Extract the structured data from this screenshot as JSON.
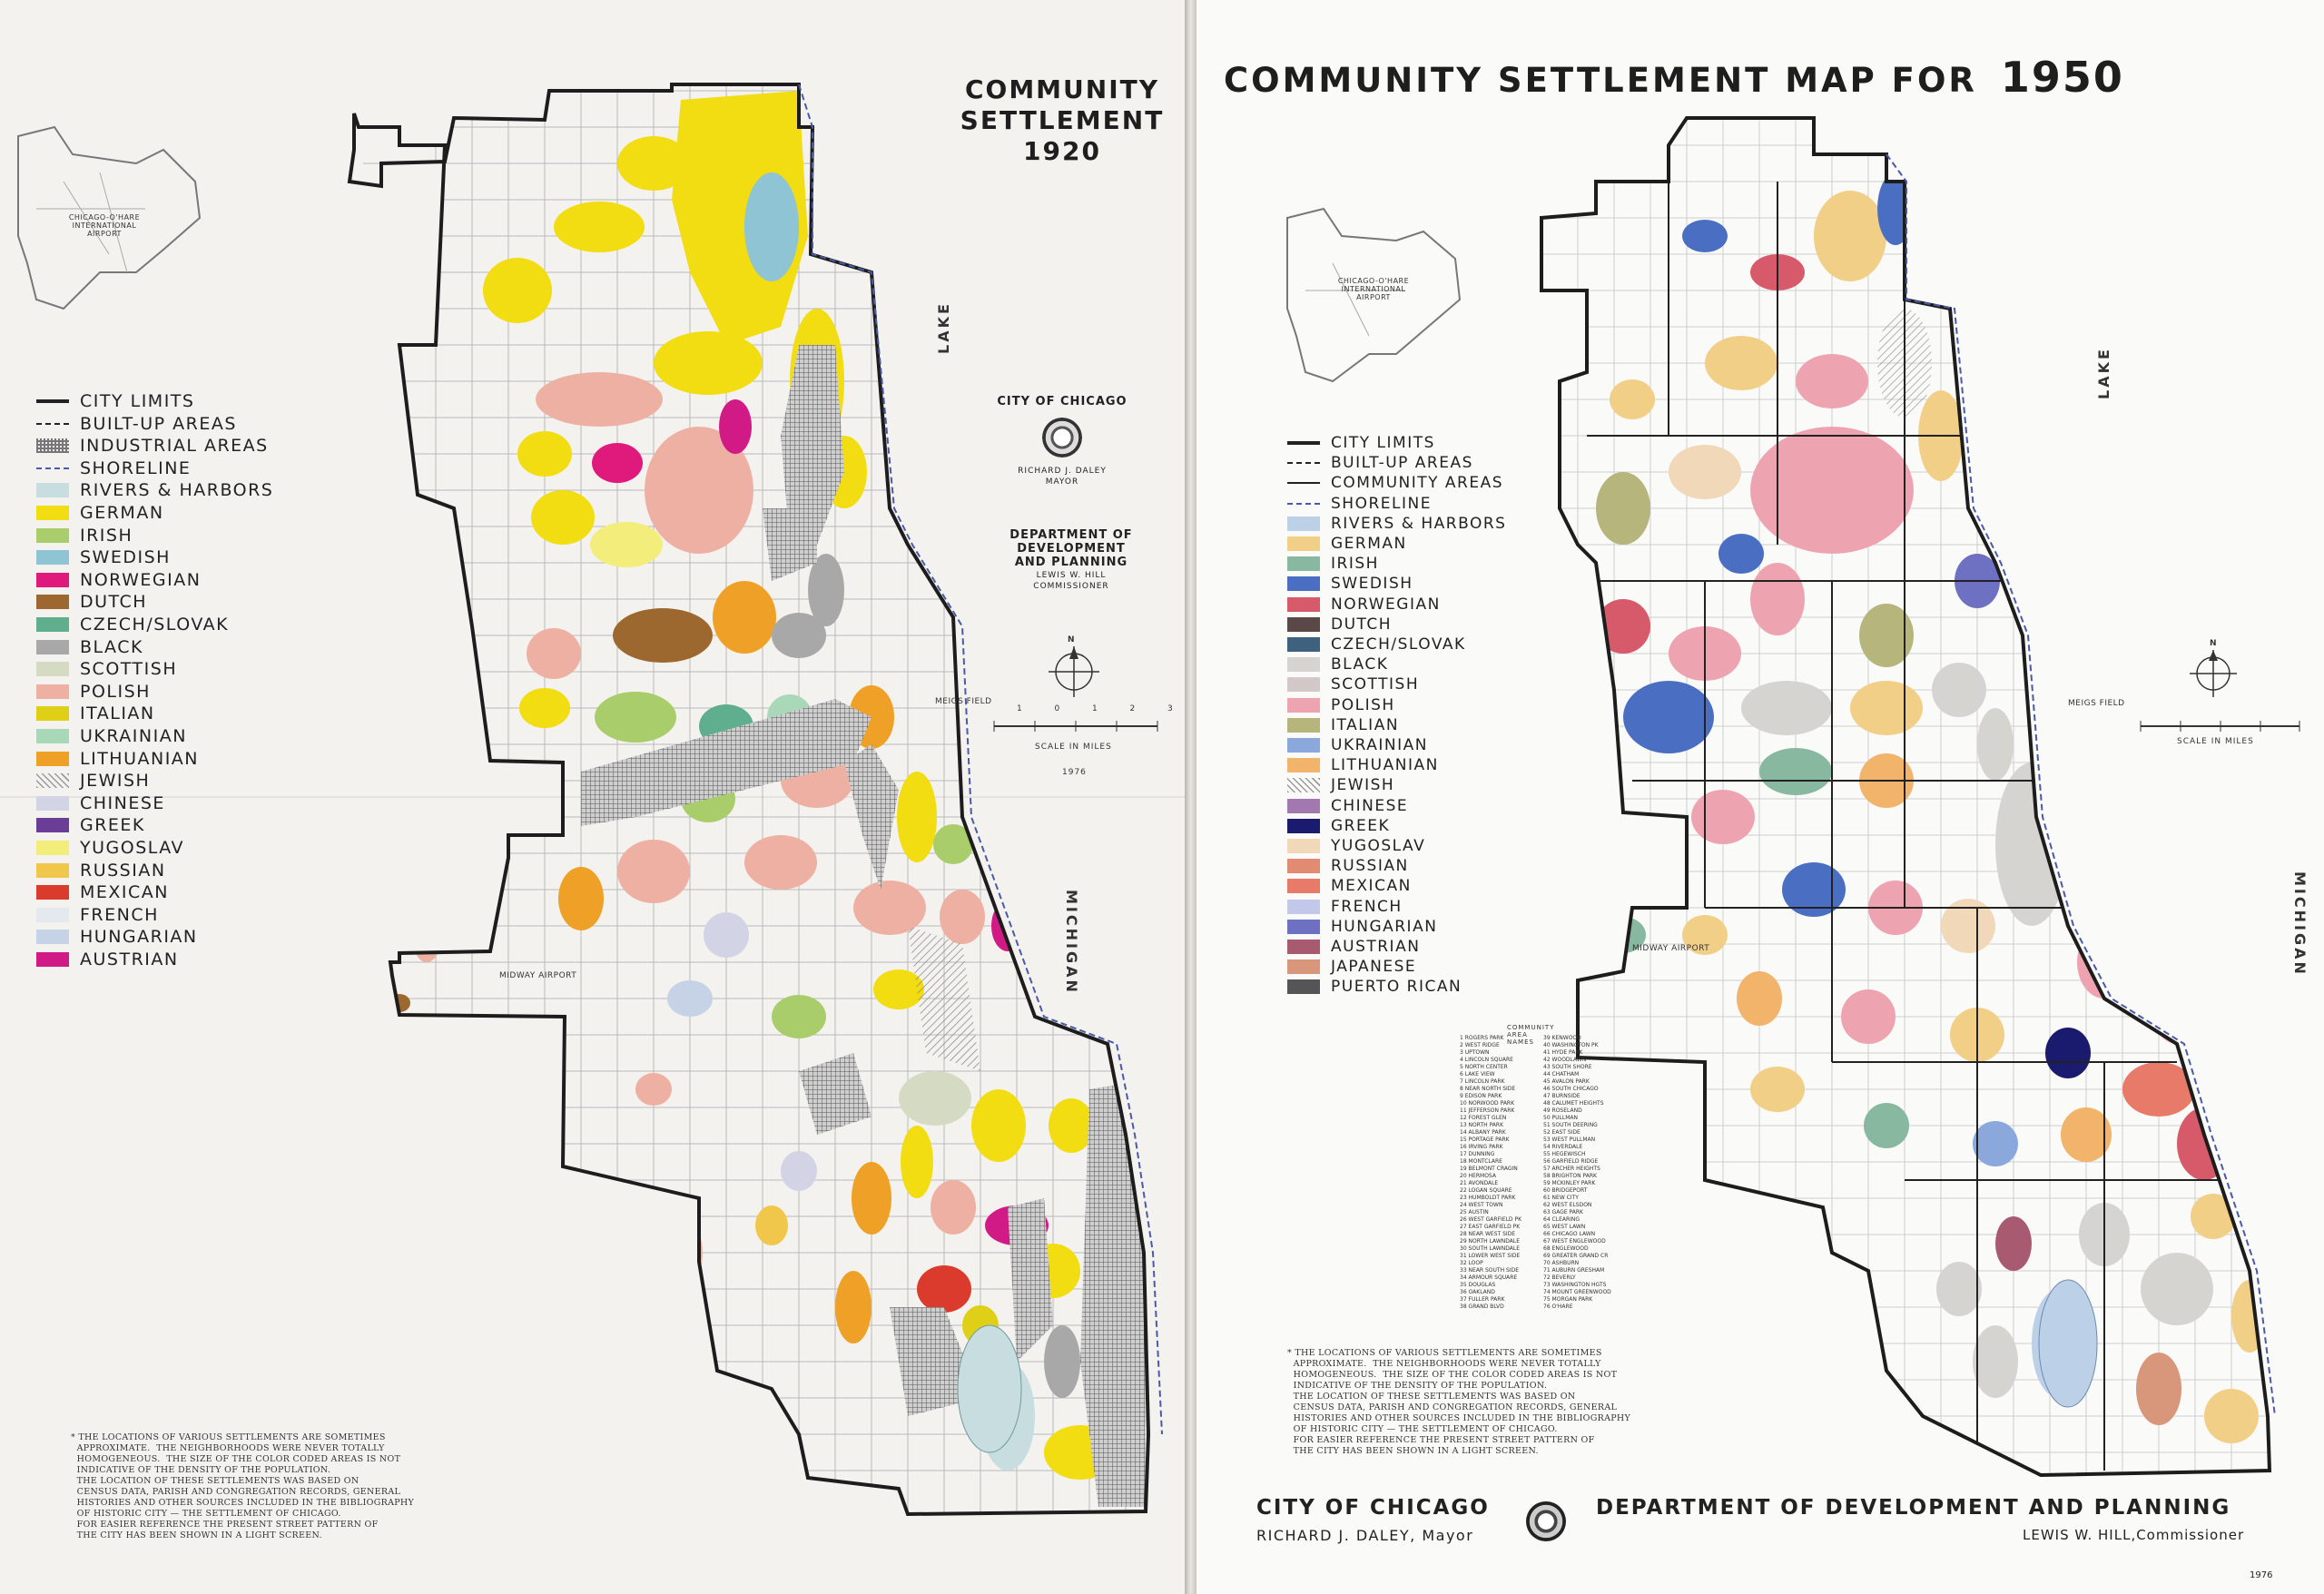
{
  "left_map": {
    "title_lines": [
      "COMMUNITY",
      "SETTLEMENT",
      "1920"
    ],
    "city_header": "CITY OF CHICAGO",
    "mayor_name": "RICHARD J. DALEY",
    "mayor_title": "MAYOR",
    "department_lines": [
      "DEPARTMENT OF DEVELOPMENT",
      "AND PLANNING"
    ],
    "commissioner_name": "LEWIS W. HILL",
    "commissioner_title": "COMMISSIONER",
    "scale_label": "SCALE IN MILES",
    "scale_ticks": [
      "1",
      "0",
      "1",
      "2",
      "3"
    ],
    "year": "1976",
    "compass": "N",
    "water_labels": [
      "LAKE",
      "MICHIGAN"
    ],
    "airport_labels": [
      "CHICAGO-O'HARE INTERNATIONAL AIRPORT",
      "MIDWAY AIRPORT",
      "MEIGS FIELD"
    ],
    "legend": [
      {
        "label": "CITY LIMITS",
        "kind": "line-thick",
        "color": "#222222"
      },
      {
        "label": "BUILT-UP AREAS",
        "kind": "line-dashed",
        "color": "#222222"
      },
      {
        "label": "INDUSTRIAL AREAS",
        "kind": "hatch-grid",
        "color": "#777777"
      },
      {
        "label": "SHORELINE",
        "kind": "line-dashed",
        "color": "#4a5aa8"
      },
      {
        "label": "RIVERS & HARBORS",
        "kind": "fill",
        "color": "#c7dde0"
      },
      {
        "label": "GERMAN",
        "kind": "fill",
        "color": "#f2dc12"
      },
      {
        "label": "IRISH",
        "kind": "fill",
        "color": "#a8cd6a"
      },
      {
        "label": "SWEDISH",
        "kind": "fill",
        "color": "#8ec4d3"
      },
      {
        "label": "NORWEGIAN",
        "kind": "fill",
        "color": "#e0197d"
      },
      {
        "label": "DUTCH",
        "kind": "fill",
        "color": "#9d6730"
      },
      {
        "label": "CZECH/SLOVAK",
        "kind": "fill",
        "color": "#5fae8e"
      },
      {
        "label": "BLACK",
        "kind": "fill",
        "color": "#a8a8a8"
      },
      {
        "label": "SCOTTISH",
        "kind": "fill",
        "color": "#d4dbc2"
      },
      {
        "label": "POLISH",
        "kind": "fill",
        "color": "#efb0a4"
      },
      {
        "label": "ITALIAN",
        "kind": "fill",
        "color": "#e0cf17"
      },
      {
        "label": "UKRAINIAN",
        "kind": "fill",
        "color": "#a8d8b8"
      },
      {
        "label": "LITHUANIAN",
        "kind": "fill",
        "color": "#eea126"
      },
      {
        "label": "JEWISH",
        "kind": "hatch",
        "color": "#9a9a9a"
      },
      {
        "label": "CHINESE",
        "kind": "fill",
        "color": "#d3d3e6"
      },
      {
        "label": "GREEK",
        "kind": "fill",
        "color": "#6a3e96"
      },
      {
        "label": "YUGOSLAV",
        "kind": "fill",
        "color": "#f3ed7c"
      },
      {
        "label": "RUSSIAN",
        "kind": "fill",
        "color": "#f0c74b"
      },
      {
        "label": "MEXICAN",
        "kind": "fill",
        "color": "#db3b2c"
      },
      {
        "label": "FRENCH",
        "kind": "fill",
        "color": "#e3e9ee"
      },
      {
        "label": "HUNGARIAN",
        "kind": "fill",
        "color": "#c6d3e6"
      },
      {
        "label": "AUSTRIAN",
        "kind": "fill",
        "color": "#d11a86"
      }
    ],
    "footnote": "* THE LOCATIONS OF VARIOUS SETTLEMENTS ARE SOMETIMES\n  APPROXIMATE.  THE NEIGHBORHOODS WERE NEVER TOTALLY\n  HOMOGENEOUS.  THE SIZE OF THE COLOR CODED AREAS IS NOT\n  INDICATIVE OF THE DENSITY OF THE POPULATION.\n  THE LOCATION OF THESE SETTLEMENTS WAS BASED ON\n  CENSUS DATA, PARISH AND CONGREGATION RECORDS, GENERAL\n  HISTORIES AND OTHER SOURCES INCLUDED IN THE BIBLIOGRAPHY\n  OF HISTORIC CITY — THE SETTLEMENT OF CHICAGO.\n  FOR EASIER REFERENCE THE PRESENT STREET PATTERN OF\n  THE CITY HAS BEEN SHOWN IN A LIGHT SCREEN."
  },
  "right_map": {
    "title": "COMMUNITY SETTLEMENT MAP FOR",
    "title_year": "1950",
    "legend": [
      {
        "label": "CITY LIMITS",
        "kind": "line-thick",
        "color": "#222222"
      },
      {
        "label": "BUILT-UP AREAS",
        "kind": "line-dashed",
        "color": "#222222"
      },
      {
        "label": "COMMUNITY AREAS",
        "kind": "line",
        "color": "#222222"
      },
      {
        "label": "SHORELINE",
        "kind": "line-dashed",
        "color": "#4a5aa8"
      },
      {
        "label": "RIVERS & HARBORS",
        "kind": "fill",
        "color": "#bcd0e8"
      },
      {
        "label": "GERMAN",
        "kind": "fill",
        "color": "#f2cf86"
      },
      {
        "label": "IRISH",
        "kind": "fill",
        "color": "#88b8a0"
      },
      {
        "label": "SWEDISH",
        "kind": "fill",
        "color": "#4a6fc2"
      },
      {
        "label": "NORWEGIAN",
        "kind": "fill",
        "color": "#d65a6a"
      },
      {
        "label": "DUTCH",
        "kind": "fill",
        "color": "#5a4848"
      },
      {
        "label": "CZECH/SLOVAK",
        "kind": "fill",
        "color": "#3f6180"
      },
      {
        "label": "BLACK",
        "kind": "fill",
        "color": "#d6d4d1"
      },
      {
        "label": "SCOTTISH",
        "kind": "fill",
        "color": "#d2c8c8"
      },
      {
        "label": "POLISH",
        "kind": "fill",
        "color": "#eea3b0"
      },
      {
        "label": "ITALIAN",
        "kind": "fill",
        "color": "#b5b57c"
      },
      {
        "label": "UKRAINIAN",
        "kind": "fill",
        "color": "#8aa8dc"
      },
      {
        "label": "LITHUANIAN",
        "kind": "fill",
        "color": "#f2b36a"
      },
      {
        "label": "JEWISH",
        "kind": "hatch",
        "color": "#9a9a9a"
      },
      {
        "label": "CHINESE",
        "kind": "fill",
        "color": "#a178b0"
      },
      {
        "label": "GREEK",
        "kind": "fill",
        "color": "#1a1a6e"
      },
      {
        "label": "YUGOSLAV",
        "kind": "fill",
        "color": "#f0d8b8"
      },
      {
        "label": "RUSSIAN",
        "kind": "fill",
        "color": "#e28a72"
      },
      {
        "label": "MEXICAN",
        "kind": "fill",
        "color": "#e87a6a"
      },
      {
        "label": "FRENCH",
        "kind": "fill",
        "color": "#c2c8ea"
      },
      {
        "label": "HUNGARIAN",
        "kind": "fill",
        "color": "#6e70c2"
      },
      {
        "label": "AUSTRIAN",
        "kind": "fill",
        "color": "#a85a70"
      },
      {
        "label": "JAPANESE",
        "kind": "fill",
        "color": "#d8967a"
      },
      {
        "label": "PUERTO RICAN",
        "kind": "fill",
        "color": "#555558"
      }
    ],
    "community_names_header": "COMMUNITY AREA NAMES",
    "community_names": [
      "1 ROGERS PARK",
      "2 WEST RIDGE",
      "3 UPTOWN",
      "4 LINCOLN SQUARE",
      "5 NORTH CENTER",
      "6 LAKE VIEW",
      "7 LINCOLN PARK",
      "8 NEAR NORTH SIDE",
      "9 EDISON PARK",
      "10 NORWOOD PARK",
      "11 JEFFERSON PARK",
      "12 FOREST GLEN",
      "13 NORTH PARK",
      "14 ALBANY PARK",
      "15 PORTAGE PARK",
      "16 IRVING PARK",
      "17 DUNNING",
      "18 MONTCLARE",
      "19 BELMONT CRAGIN",
      "20 HERMOSA",
      "21 AVONDALE",
      "22 LOGAN SQUARE",
      "23 HUMBOLDT PARK",
      "24 WEST TOWN",
      "25 AUSTIN",
      "26 WEST GARFIELD PK",
      "27 EAST GARFIELD PK",
      "28 NEAR WEST SIDE",
      "29 NORTH LAWNDALE",
      "30 SOUTH LAWNDALE",
      "31 LOWER WEST SIDE",
      "32 LOOP",
      "33 NEAR SOUTH SIDE",
      "34 ARMOUR SQUARE",
      "35 DOUGLAS",
      "36 OAKLAND",
      "37 FULLER PARK",
      "38 GRAND BLVD",
      "39 KENWOOD",
      "40 WASHINGTON PK",
      "41 HYDE PARK",
      "42 WOODLAWN",
      "43 SOUTH SHORE",
      "44 CHATHAM",
      "45 AVALON PARK",
      "46 SOUTH CHICAGO",
      "47 BURNSIDE",
      "48 CALUMET HEIGHTS",
      "49 ROSELAND",
      "50 PULLMAN",
      "51 SOUTH DEERING",
      "52 EAST SIDE",
      "53 WEST PULLMAN",
      "54 RIVERDALE",
      "55 HEGEWISCH",
      "56 GARFIELD RIDGE",
      "57 ARCHER HEIGHTS",
      "58 BRIGHTON PARK",
      "59 MCKINLEY PARK",
      "60 BRIDGEPORT",
      "61 NEW CITY",
      "62 WEST ELSDON",
      "63 GAGE PARK",
      "64 CLEARING",
      "65 WEST LAWN",
      "66 CHICAGO LAWN",
      "67 WEST ENGLEWOOD",
      "68 ENGLEWOOD",
      "69 GREATER GRAND CR",
      "70 ASHBURN",
      "71 AUBURN GRESHAM",
      "72 BEVERLY",
      "73 WASHINGTON HGTS",
      "74 MOUNT GREENWOOD",
      "75 MORGAN PARK",
      "76 O'HARE"
    ],
    "footnote": "* THE LOCATIONS OF VARIOUS SETTLEMENTS ARE SOMETIMES\n  APPROXIMATE.  THE NEIGHBORHOODS WERE NEVER TOTALLY\n  HOMOGENEOUS.  THE SIZE OF THE COLOR CODED AREAS IS NOT\n  INDICATIVE OF THE DENSITY OF THE POPULATION.\n  THE LOCATION OF THESE SETTLEMENTS WAS BASED ON\n  CENSUS DATA, PARISH AND CONGREGATION RECORDS, GENERAL\n  HISTORIES AND OTHER SOURCES INCLUDED IN THE BIBLIOGRAPHY\n  OF HISTORIC CITY — THE SETTLEMENT OF CHICAGO.\n  FOR EASIER REFERENCE THE PRESENT STREET PATTERN OF\n  THE CITY HAS BEEN SHOWN IN A LIGHT SCREEN.",
    "city_name": "CITY OF CHICAGO",
    "mayor": "RICHARD J. DALEY, Mayor",
    "department": "DEPARTMENT OF DEVELOPMENT AND PLANNING",
    "commissioner": "LEWIS W. HILL,Commissioner",
    "year": "1976",
    "compass": "N",
    "scale_label": "SCALE IN MILES",
    "water_labels": [
      "LAKE",
      "MICHIGAN"
    ],
    "airport_labels": [
      "CHICAGO-O'HARE INTERNATIONAL AIRPORT",
      "MIDWAY AIRPORT",
      "MEIGS FIELD"
    ]
  }
}
